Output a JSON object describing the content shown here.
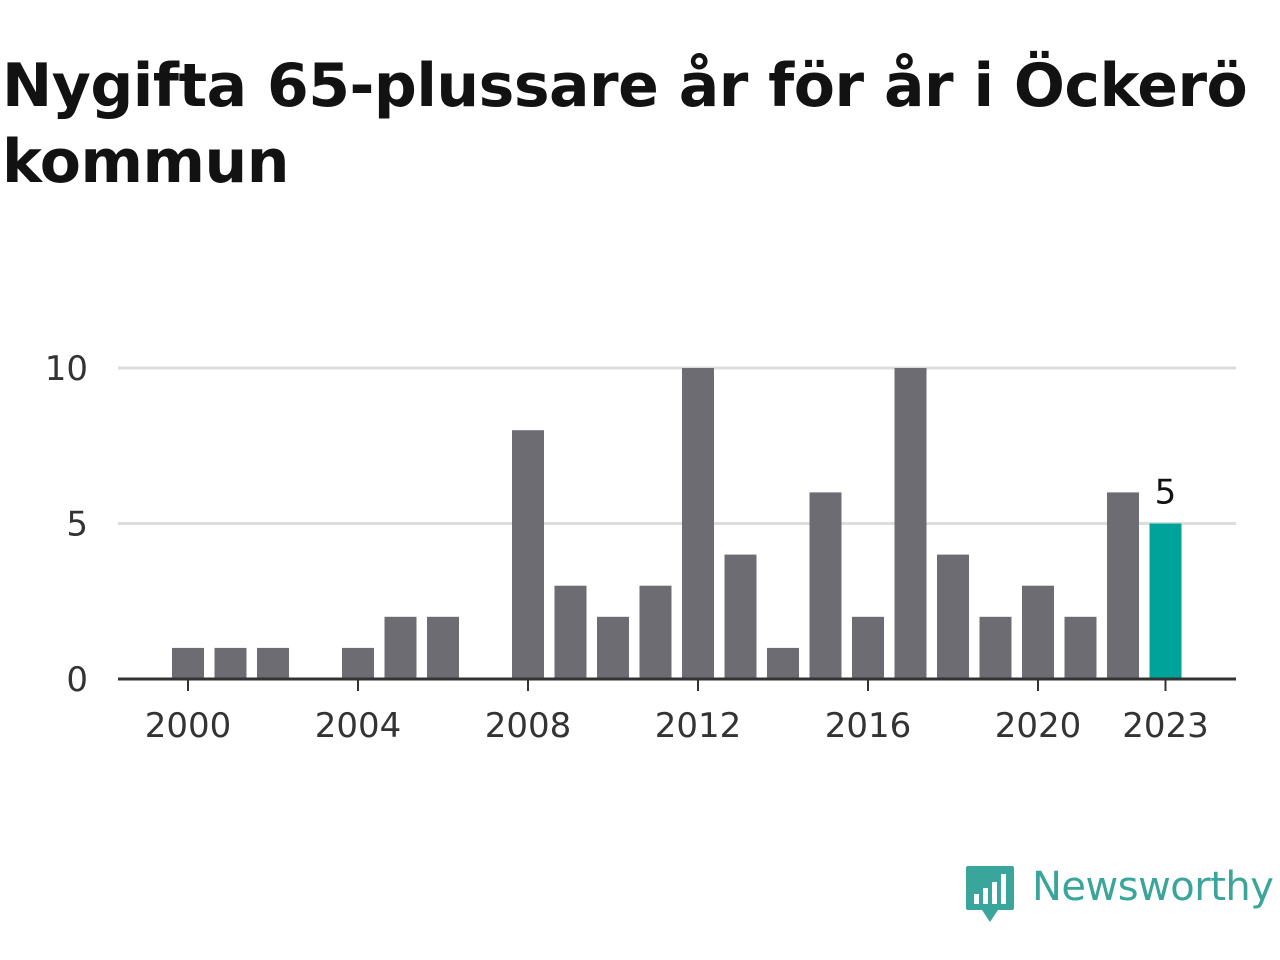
{
  "title": "Nygifta 65-plussare år för år i Öckerö kommun",
  "brand": {
    "name": "Newsworthy",
    "color": "#3aa59a"
  },
  "colors": {
    "bar": "#6e6c73",
    "highlight": "#00a39a",
    "grid": "#dddddd",
    "axis": "#333333"
  },
  "chart_data": {
    "type": "bar",
    "categories": [
      "2000",
      "2001",
      "2002",
      "2003",
      "2004",
      "2005",
      "2006",
      "2007",
      "2008",
      "2009",
      "2010",
      "2011",
      "2012",
      "2013",
      "2014",
      "2015",
      "2016",
      "2017",
      "2018",
      "2019",
      "2020",
      "2021",
      "2022",
      "2023"
    ],
    "values": [
      1,
      1,
      1,
      0,
      1,
      2,
      2,
      0,
      8,
      3,
      2,
      3,
      10,
      4,
      1,
      6,
      2,
      10,
      4,
      2,
      3,
      2,
      6,
      5
    ],
    "x_tick_labels": [
      "2000",
      "2004",
      "2008",
      "2012",
      "2016",
      "2020",
      "2023"
    ],
    "y_tick_labels": [
      "0",
      "5",
      "10"
    ],
    "ylim": [
      0,
      10
    ],
    "highlight": {
      "category": "2023",
      "label": "5"
    },
    "grid": true,
    "legend": false
  }
}
